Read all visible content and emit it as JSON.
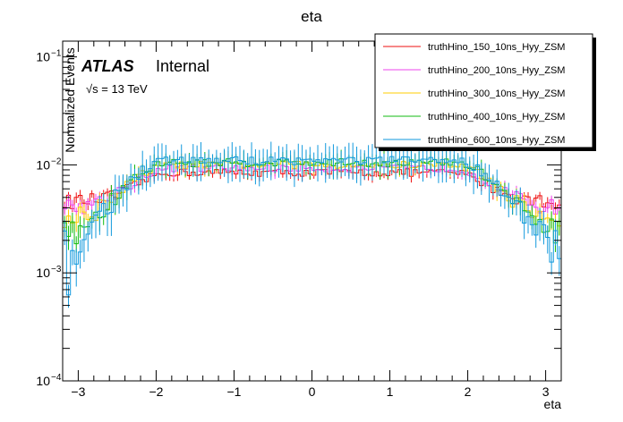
{
  "chart_data": {
    "type": "line",
    "title": "eta",
    "xlabel": "eta",
    "ylabel": "Normalized Events",
    "xlim": [
      -3.2,
      3.2
    ],
    "ylim": [
      0.0001,
      0.14
    ],
    "ylog": true,
    "x_ticks": [
      -3,
      -2,
      -1,
      0,
      1,
      2,
      3
    ],
    "x_tick_labels": [
      "−3",
      "−2",
      "−1",
      "0",
      "1",
      "2",
      "3"
    ],
    "y_ticks": [
      0.0001,
      0.001,
      0.01,
      0.1
    ],
    "y_tick_labels": [
      {
        "base": "10",
        "exp": "−4"
      },
      {
        "base": "10",
        "exp": "−3"
      },
      {
        "base": "10",
        "exp": "−2"
      },
      {
        "base": "10",
        "exp": "−1"
      }
    ],
    "nbins": 128,
    "grid": false,
    "legend_position": "top-right",
    "atlas_label": "ATLAS",
    "atlas_status": "Internal",
    "energy_label": "√s = 13 TeV",
    "series": [
      {
        "name": "truthHino_150_10ns_Hyy_ZSM",
        "color": "#ee1111",
        "edge": 0.0046,
        "plateau": 0.0085,
        "width": 0.6,
        "noise": 0.0007,
        "err": 0.07
      },
      {
        "name": "truthHino_200_10ns_Hyy_ZSM",
        "color": "#ee44ee",
        "edge": 0.004,
        "plateau": 0.0093,
        "width": 0.8,
        "noise": 0.0007,
        "err": 0.08
      },
      {
        "name": "truthHino_300_10ns_Hyy_ZSM",
        "color": "#ffcc00",
        "edge": 0.003,
        "plateau": 0.01,
        "width": 0.9,
        "noise": 0.0008,
        "err": 0.1
      },
      {
        "name": "truthHino_400_10ns_Hyy_ZSM",
        "color": "#11bb11",
        "edge": 0.002,
        "plateau": 0.0105,
        "width": 1.0,
        "noise": 0.0009,
        "err": 0.13
      },
      {
        "name": "truthHino_600_10ns_Hyy_ZSM",
        "color": "#1199dd",
        "edge": 0.0011,
        "plateau": 0.011,
        "width": 1.15,
        "noise": 0.001,
        "err": 0.2
      }
    ]
  }
}
